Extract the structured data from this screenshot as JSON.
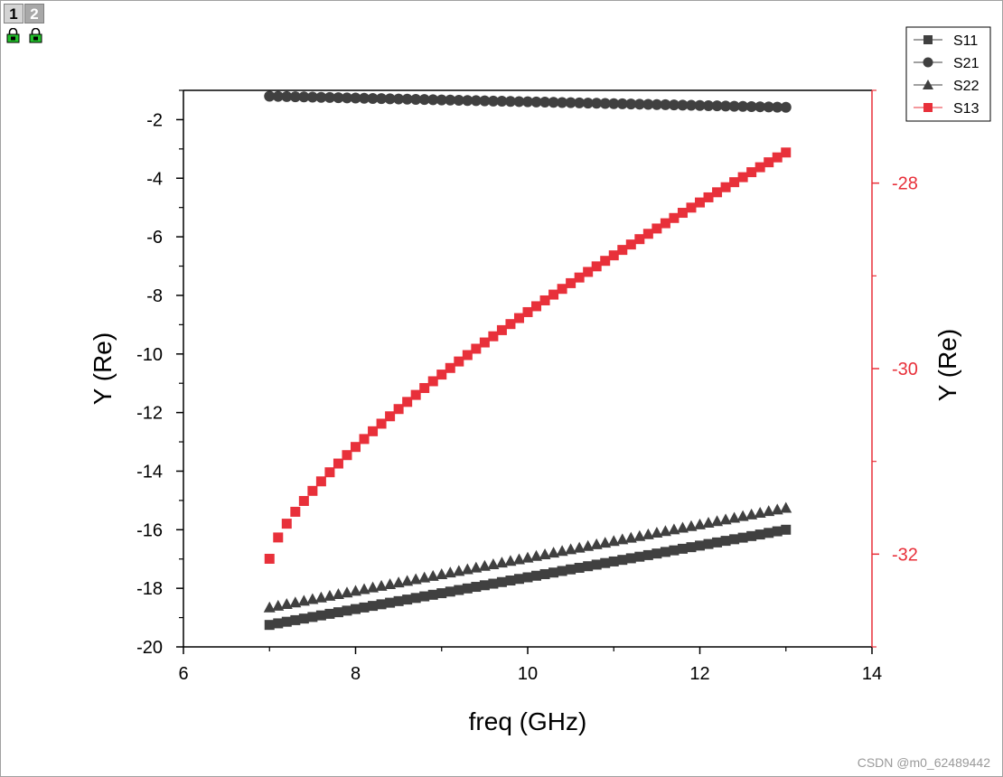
{
  "window": {
    "layer_tabs": [
      {
        "label": "1",
        "active": true
      },
      {
        "label": "2",
        "active": false
      }
    ],
    "lock_icons": [
      "lock-icon",
      "lock-icon"
    ],
    "watermark": "CSDN @m0_62489442"
  },
  "colors": {
    "dark": "#404040",
    "red": "#e8303a",
    "axis": "#000000"
  },
  "chart_data": {
    "type": "scatter",
    "xlabel": "freq (GHz)",
    "ylabel_left": "Y (Re)",
    "ylabel_right": "Y (Re)",
    "xlim": [
      6,
      14
    ],
    "ylim_left": [
      -20,
      -1
    ],
    "ylim_right": [
      -33,
      -27
    ],
    "x_ticks": [
      "6",
      "8",
      "10",
      "12",
      "14"
    ],
    "y_left_ticks": [
      "-2",
      "-4",
      "-6",
      "-8",
      "-10",
      "-12",
      "-14",
      "-16",
      "-18",
      "-20"
    ],
    "y_right_ticks": [
      "-28",
      "-30",
      "-32"
    ],
    "x_range": [
      7,
      13
    ],
    "points_per_series": 61,
    "series": [
      {
        "name": "S11",
        "axis": "left",
        "marker": "square",
        "color": "#404040",
        "curve": "linear",
        "y_start": -19.25,
        "y_end": -16.0
      },
      {
        "name": "S21",
        "axis": "left",
        "marker": "circle",
        "color": "#404040",
        "curve": "linear",
        "y_start": -1.2,
        "y_end": -1.58
      },
      {
        "name": "S22",
        "axis": "left",
        "marker": "triangle",
        "color": "#404040",
        "curve": "linear",
        "y_start": -18.65,
        "y_end": -15.25
      },
      {
        "name": "S13",
        "axis": "right",
        "marker": "square",
        "color": "#e8303a",
        "curve": "sqrt",
        "y_start": -32.05,
        "y_end": -27.67
      }
    ],
    "legend": [
      "S11",
      "S21",
      "S22",
      "S13"
    ],
    "legend_position": "top-right"
  }
}
